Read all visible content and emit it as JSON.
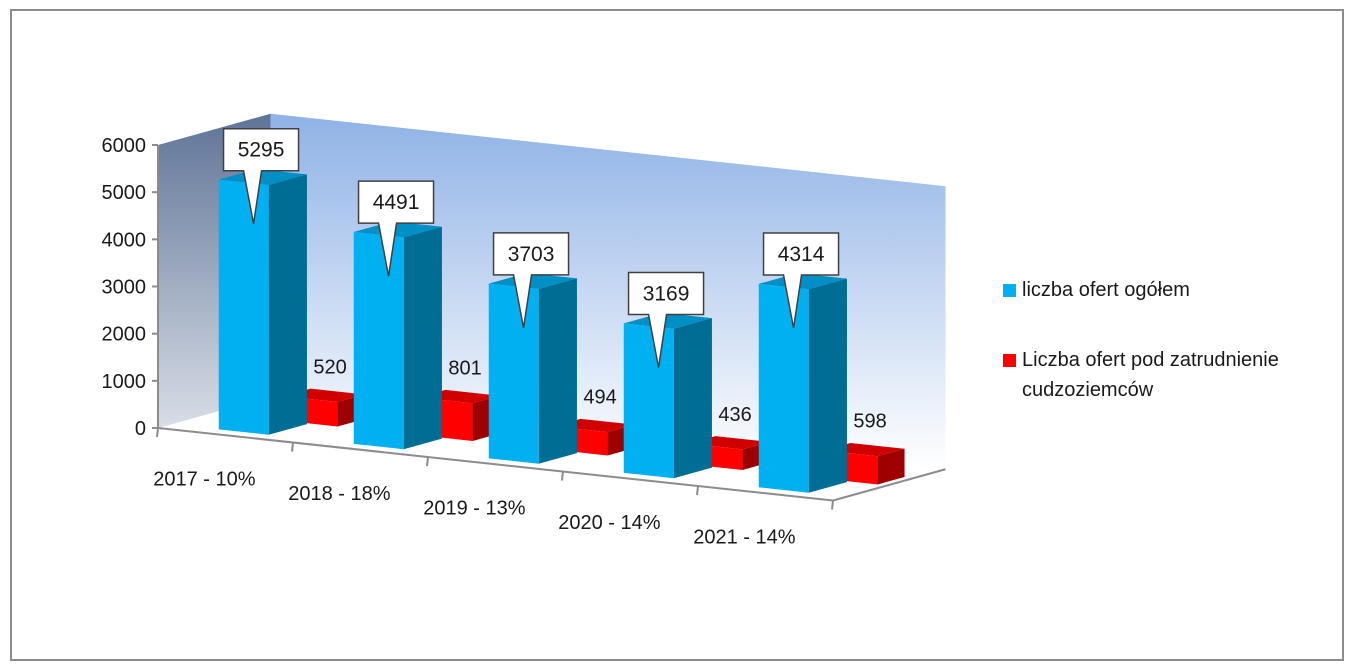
{
  "chart_data": {
    "type": "bar",
    "categories": [
      "2017 - 10%",
      "2018 - 18%",
      "2019 - 13%",
      "2020 - 14%",
      "2021 - 14%"
    ],
    "series": [
      {
        "name": "liczba ofert ogółem",
        "values": [
          5295,
          4491,
          3703,
          3169,
          4314
        ],
        "color": "#00b0f0"
      },
      {
        "name": "Liczba ofert pod zatrudnienie cudzoziemców",
        "values": [
          520,
          801,
          494,
          436,
          598
        ],
        "color": "#ff0000"
      }
    ],
    "ylim": [
      0,
      6000
    ],
    "yticks": [
      0,
      1000,
      2000,
      3000,
      4000,
      5000,
      6000
    ],
    "ytick_labels": [
      "0",
      "1000",
      "2000",
      "3000",
      "4000",
      "5000",
      "6000"
    ],
    "style": "3d-column",
    "legend_position": "right",
    "grid": false
  }
}
